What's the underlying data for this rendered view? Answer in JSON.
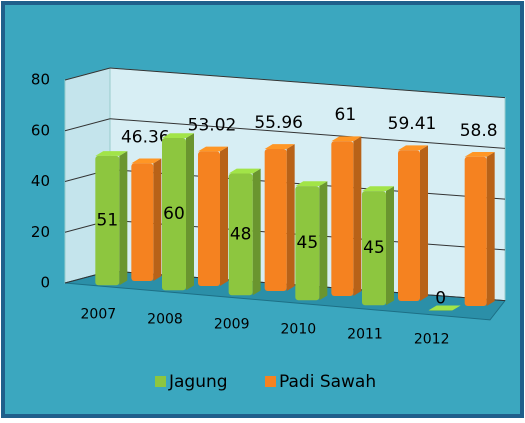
{
  "chart_data": {
    "type": "bar3d",
    "categories": [
      "2007",
      "2008",
      "2009",
      "2010",
      "2011",
      "2012"
    ],
    "series": [
      {
        "name": "Jagung",
        "color": "#8dc63f",
        "values": [
          51,
          60,
          48,
          45,
          45,
          0
        ]
      },
      {
        "name": "Padi Sawah",
        "color": "#f58220",
        "values": [
          46.36,
          53.02,
          55.96,
          61,
          59.41,
          58.8
        ]
      }
    ],
    "ylim": [
      0,
      80
    ],
    "yticks": [
      0,
      20,
      40,
      60,
      80
    ],
    "grid": true,
    "legend": "bottom"
  }
}
